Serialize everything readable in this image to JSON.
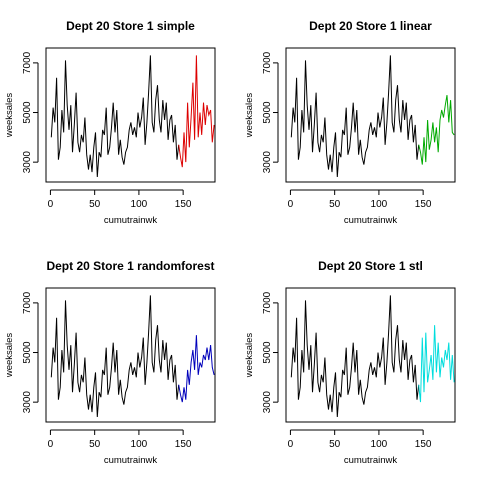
{
  "chart_data": [
    {
      "type": "line",
      "title": "Dept 20 Store 1 simple",
      "xlabel": "cumutrainwk",
      "ylabel": "weeksales",
      "xlim": [
        -5,
        186
      ],
      "ylim": [
        2200,
        7600
      ],
      "xticks": [
        0,
        50,
        100,
        150
      ],
      "yticks": [
        3000,
        5000,
        7000
      ],
      "forecast_color": "#dd0000",
      "series": [
        {
          "role": "history",
          "x": [
            1,
            3,
            5,
            7,
            9,
            11,
            13,
            15,
            17,
            19,
            21,
            23,
            25,
            27,
            29,
            31,
            33,
            35,
            37,
            39,
            41,
            43,
            45,
            47,
            49,
            51,
            53,
            55,
            57,
            59,
            61,
            63,
            65,
            67,
            69,
            71,
            73,
            75,
            77,
            79,
            81,
            83,
            85,
            87,
            89,
            91,
            93,
            95,
            97,
            99,
            101,
            103,
            105,
            107,
            109,
            111,
            113,
            115,
            117,
            119,
            121,
            123,
            125,
            127,
            129,
            131,
            133,
            135,
            137,
            139,
            141,
            143,
            145
          ],
          "y": [
            4000,
            5200,
            4600,
            6400,
            3100,
            3600,
            5100,
            4200,
            7100,
            5300,
            4300,
            5300,
            3400,
            4500,
            5800,
            3800,
            3400,
            4100,
            3800,
            4800,
            3300,
            2700,
            3300,
            2600,
            3600,
            4200,
            2400,
            3400,
            3200,
            4300,
            4100,
            5200,
            3300,
            3600,
            4400,
            5400,
            4200,
            5100,
            3300,
            3900,
            3200,
            2900,
            3400,
            3600,
            4300,
            4600,
            4100,
            4400,
            4000,
            5000,
            4400,
            4800,
            5600,
            3700,
            4600,
            5800,
            7300,
            4600,
            4200,
            5500,
            6100,
            4700,
            4200,
            5500,
            4700,
            5400,
            3900,
            4700,
            4900,
            3800,
            4500,
            3100,
            3700
          ]
        },
        {
          "role": "forecast",
          "x": [
            145,
            147,
            149,
            151,
            153,
            155,
            157,
            159,
            161,
            163,
            165,
            167,
            169,
            171,
            173,
            175,
            177,
            179,
            181,
            183,
            185
          ],
          "y": [
            3700,
            3200,
            2800,
            4200,
            3000,
            5400,
            3600,
            4800,
            6200,
            3900,
            7300,
            4000,
            5000,
            4100,
            5400,
            4500,
            5300,
            4900,
            5100,
            3800,
            4500
          ]
        }
      ]
    },
    {
      "type": "line",
      "title": "Dept 20 Store 1 linear",
      "xlabel": "cumutrainwk",
      "ylabel": "weeksales",
      "xlim": [
        -5,
        186
      ],
      "ylim": [
        2200,
        7600
      ],
      "xticks": [
        0,
        50,
        100,
        150
      ],
      "yticks": [
        3000,
        5000,
        7000
      ],
      "forecast_color": "#00aa00",
      "series": [
        {
          "role": "history",
          "x": [
            1,
            3,
            5,
            7,
            9,
            11,
            13,
            15,
            17,
            19,
            21,
            23,
            25,
            27,
            29,
            31,
            33,
            35,
            37,
            39,
            41,
            43,
            45,
            47,
            49,
            51,
            53,
            55,
            57,
            59,
            61,
            63,
            65,
            67,
            69,
            71,
            73,
            75,
            77,
            79,
            81,
            83,
            85,
            87,
            89,
            91,
            93,
            95,
            97,
            99,
            101,
            103,
            105,
            107,
            109,
            111,
            113,
            115,
            117,
            119,
            121,
            123,
            125,
            127,
            129,
            131,
            133,
            135,
            137,
            139,
            141,
            143,
            145
          ],
          "y": [
            4000,
            5200,
            4600,
            6400,
            3100,
            3600,
            5100,
            4200,
            7100,
            5300,
            4300,
            5300,
            3400,
            4500,
            5800,
            3800,
            3400,
            4100,
            3800,
            4800,
            3300,
            2700,
            3300,
            2600,
            3600,
            4200,
            2400,
            3400,
            3200,
            4300,
            4100,
            5200,
            3300,
            3600,
            4400,
            5400,
            4200,
            5100,
            3300,
            3900,
            3200,
            2900,
            3400,
            3600,
            4300,
            4600,
            4100,
            4400,
            4000,
            5000,
            4400,
            4800,
            5600,
            3700,
            4600,
            5800,
            7300,
            4600,
            4200,
            5500,
            6100,
            4700,
            4200,
            5500,
            4700,
            5400,
            3900,
            4700,
            4900,
            3800,
            4500,
            3100,
            3700
          ]
        },
        {
          "role": "forecast",
          "x": [
            145,
            147,
            149,
            151,
            153,
            155,
            157,
            159,
            161,
            163,
            165,
            167,
            169,
            171,
            173,
            175,
            177,
            179,
            181,
            183,
            185
          ],
          "y": [
            3700,
            3400,
            2900,
            4000,
            3000,
            4700,
            3500,
            3900,
            4600,
            3800,
            4400,
            3400,
            4700,
            5100,
            4800,
            5300,
            5700,
            4600,
            5500,
            4200,
            4100
          ]
        }
      ]
    },
    {
      "type": "line",
      "title": "Dept 20 Store 1 randomforest",
      "xlabel": "cumutrainwk",
      "ylabel": "weeksales",
      "xlim": [
        -5,
        186
      ],
      "ylim": [
        2200,
        7600
      ],
      "xticks": [
        0,
        50,
        100,
        150
      ],
      "yticks": [
        3000,
        5000,
        7000
      ],
      "forecast_color": "#0000bb",
      "series": [
        {
          "role": "history",
          "x": [
            1,
            3,
            5,
            7,
            9,
            11,
            13,
            15,
            17,
            19,
            21,
            23,
            25,
            27,
            29,
            31,
            33,
            35,
            37,
            39,
            41,
            43,
            45,
            47,
            49,
            51,
            53,
            55,
            57,
            59,
            61,
            63,
            65,
            67,
            69,
            71,
            73,
            75,
            77,
            79,
            81,
            83,
            85,
            87,
            89,
            91,
            93,
            95,
            97,
            99,
            101,
            103,
            105,
            107,
            109,
            111,
            113,
            115,
            117,
            119,
            121,
            123,
            125,
            127,
            129,
            131,
            133,
            135,
            137,
            139,
            141,
            143,
            145
          ],
          "y": [
            4000,
            5200,
            4600,
            6400,
            3100,
            3600,
            5100,
            4200,
            7100,
            5300,
            4300,
            5300,
            3400,
            4500,
            5800,
            3800,
            3400,
            4100,
            3800,
            4800,
            3300,
            2700,
            3300,
            2600,
            3600,
            4200,
            2400,
            3400,
            3200,
            4300,
            4100,
            5200,
            3300,
            3600,
            4400,
            5400,
            4200,
            5100,
            3300,
            3900,
            3200,
            2900,
            3400,
            3600,
            4300,
            4600,
            4100,
            4400,
            4000,
            5000,
            4400,
            4800,
            5600,
            3700,
            4600,
            5800,
            7300,
            4600,
            4200,
            5500,
            6100,
            4700,
            4200,
            5500,
            4700,
            5400,
            3900,
            4700,
            4900,
            3800,
            4500,
            3100,
            3700
          ]
        },
        {
          "role": "forecast",
          "x": [
            145,
            147,
            149,
            151,
            153,
            155,
            157,
            159,
            161,
            163,
            165,
            167,
            169,
            171,
            173,
            175,
            177,
            179,
            181,
            183,
            185
          ],
          "y": [
            3700,
            3300,
            3000,
            3600,
            3100,
            4300,
            3700,
            4600,
            5100,
            4300,
            5700,
            4100,
            4600,
            4400,
            4900,
            4700,
            5200,
            4700,
            5300,
            4400,
            4100
          ]
        }
      ]
    },
    {
      "type": "line",
      "title": "Dept 20 Store 1 stl",
      "xlabel": "cumutrainwk",
      "ylabel": "weeksales",
      "xlim": [
        -5,
        186
      ],
      "ylim": [
        2200,
        7600
      ],
      "xticks": [
        0,
        50,
        100,
        150
      ],
      "yticks": [
        3000,
        5000,
        7000
      ],
      "forecast_color": "#00dddd",
      "series": [
        {
          "role": "history",
          "x": [
            1,
            3,
            5,
            7,
            9,
            11,
            13,
            15,
            17,
            19,
            21,
            23,
            25,
            27,
            29,
            31,
            33,
            35,
            37,
            39,
            41,
            43,
            45,
            47,
            49,
            51,
            53,
            55,
            57,
            59,
            61,
            63,
            65,
            67,
            69,
            71,
            73,
            75,
            77,
            79,
            81,
            83,
            85,
            87,
            89,
            91,
            93,
            95,
            97,
            99,
            101,
            103,
            105,
            107,
            109,
            111,
            113,
            115,
            117,
            119,
            121,
            123,
            125,
            127,
            129,
            131,
            133,
            135,
            137,
            139,
            141,
            143,
            145
          ],
          "y": [
            4000,
            5200,
            4600,
            6400,
            3100,
            3600,
            5100,
            4200,
            7100,
            5300,
            4300,
            5300,
            3400,
            4500,
            5800,
            3800,
            3400,
            4100,
            3800,
            4800,
            3300,
            2700,
            3300,
            2600,
            3600,
            4200,
            2400,
            3400,
            3200,
            4300,
            4100,
            5200,
            3300,
            3600,
            4400,
            5400,
            4200,
            5100,
            3300,
            3900,
            3200,
            2900,
            3400,
            3600,
            4300,
            4600,
            4100,
            4400,
            4000,
            5000,
            4400,
            4800,
            5600,
            3700,
            4600,
            5800,
            7300,
            4600,
            4200,
            5500,
            6100,
            4700,
            4200,
            5500,
            4700,
            5400,
            3900,
            4700,
            4900,
            3800,
            4500,
            3100,
            3700
          ]
        },
        {
          "role": "forecast",
          "x": [
            145,
            147,
            149,
            151,
            153,
            155,
            157,
            159,
            161,
            163,
            165,
            167,
            169,
            171,
            173,
            175,
            177,
            179,
            181,
            183,
            185
          ],
          "y": [
            3700,
            3000,
            5600,
            3400,
            5800,
            3800,
            4300,
            4900,
            3900,
            6100,
            4200,
            5400,
            4000,
            4800,
            4400,
            5100,
            4700,
            5400,
            3900,
            4900,
            3800
          ]
        }
      ]
    }
  ]
}
